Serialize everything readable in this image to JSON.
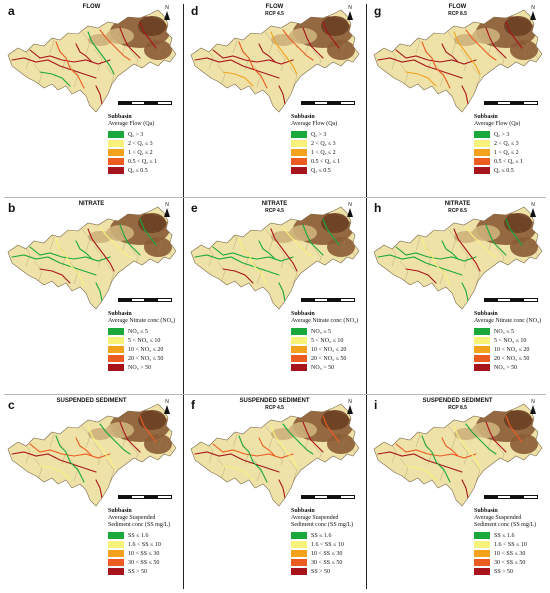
{
  "panels": [
    {
      "letter": "a",
      "title": "FLOW",
      "subtitle": "",
      "legend": "flow"
    },
    {
      "letter": "d",
      "title": "FLOW",
      "subtitle": "RCP 4.5",
      "legend": "flow"
    },
    {
      "letter": "g",
      "title": "FLOW",
      "subtitle": "RCP 8.5",
      "legend": "flow"
    },
    {
      "letter": "b",
      "title": "NITRATE",
      "subtitle": "",
      "legend": "nitrate"
    },
    {
      "letter": "e",
      "title": "NITRATE",
      "subtitle": "RCP 4.5",
      "legend": "nitrate"
    },
    {
      "letter": "h",
      "title": "NITRATE",
      "subtitle": "RCP 8.5",
      "legend": "nitrate"
    },
    {
      "letter": "c",
      "title": "SUSPENDED SEDIMENT",
      "subtitle": "",
      "legend": "sediment"
    },
    {
      "letter": "f",
      "title": "SUSPENDED SEDIMENT",
      "subtitle": "RCP 4.5",
      "legend": "sediment"
    },
    {
      "letter": "i",
      "title": "SUSPENDED SEDIMENT",
      "subtitle": "RCP 8.5",
      "legend": "sediment"
    }
  ],
  "north_label": "N",
  "legends": {
    "flow": {
      "title": "Subbasin",
      "subtitle": "Average Flow (Qa)",
      "items": [
        {
          "label": "Qₐ > 3",
          "color": "#1aa83a"
        },
        {
          "label": "2 < Qₐ ≤ 3",
          "color": "#f7f27a"
        },
        {
          "label": "1 < Qₐ ≤ 2",
          "color": "#f2a21c"
        },
        {
          "label": "0.5 < Qₐ ≤ 1",
          "color": "#ec5b20"
        },
        {
          "label": "Qₐ ≤ 0.5",
          "color": "#a8141c"
        }
      ]
    },
    "nitrate": {
      "title": "Subbasin",
      "subtitle": "Average Nitrate conc (NO₃)",
      "items": [
        {
          "label": "NO₃ ≤ 5",
          "color": "#1aa83a"
        },
        {
          "label": "5 < NO₃ ≤ 10",
          "color": "#f7f27a"
        },
        {
          "label": "10 < NO₃ ≤ 20",
          "color": "#f2a21c"
        },
        {
          "label": "20 < NO₃ ≤ 50",
          "color": "#ec5b20"
        },
        {
          "label": "NO₃ > 50",
          "color": "#a8141c"
        }
      ]
    },
    "sediment": {
      "title": "Subbasin",
      "subtitle": "Average Suspended",
      "subtitle2": "Sediment conc (SS mg/L)",
      "items": [
        {
          "label": "SS ≤ 1.6",
          "color": "#1aa83a"
        },
        {
          "label": "1.6 < SS ≤ 10",
          "color": "#f7f27a"
        },
        {
          "label": "10 < SS ≤ 30",
          "color": "#f2a21c"
        },
        {
          "label": "30 < SS ≤ 50",
          "color": "#ec5b20"
        },
        {
          "label": "SS > 50",
          "color": "#a8141c"
        }
      ]
    }
  },
  "colors": {
    "lowland": "#efe2a8",
    "midland": "#cdb27a",
    "highland": "#8a5c36",
    "peak": "#6a3f22",
    "river_green": "#1aa83a",
    "river_red": "#a8141c",
    "river_orange": "#ec5b20"
  },
  "river_styles": [
    {
      "panel": "a",
      "mix": [
        "#a8141c",
        "#a8141c",
        "#ec5b20",
        "#1aa83a"
      ]
    },
    {
      "panel": "d",
      "mix": [
        "#a8141c",
        "#a8141c",
        "#ec5b20",
        "#f2a21c"
      ]
    },
    {
      "panel": "g",
      "mix": [
        "#a8141c",
        "#a8141c",
        "#ec5b20",
        "#f2a21c"
      ]
    },
    {
      "panel": "b",
      "mix": [
        "#1aa83a",
        "#1aa83a",
        "#f7f27a",
        "#a8141c"
      ]
    },
    {
      "panel": "e",
      "mix": [
        "#1aa83a",
        "#1aa83a",
        "#f7f27a",
        "#a8141c"
      ]
    },
    {
      "panel": "h",
      "mix": [
        "#1aa83a",
        "#1aa83a",
        "#f7f27a",
        "#a8141c"
      ]
    },
    {
      "panel": "c",
      "mix": [
        "#a8141c",
        "#ec5b20",
        "#1aa83a",
        "#f7f27a"
      ]
    },
    {
      "panel": "f",
      "mix": [
        "#a8141c",
        "#ec5b20",
        "#1aa83a",
        "#f7f27a"
      ]
    },
    {
      "panel": "i",
      "mix": [
        "#a8141c",
        "#ec5b20",
        "#1aa83a",
        "#f7f27a"
      ]
    }
  ]
}
